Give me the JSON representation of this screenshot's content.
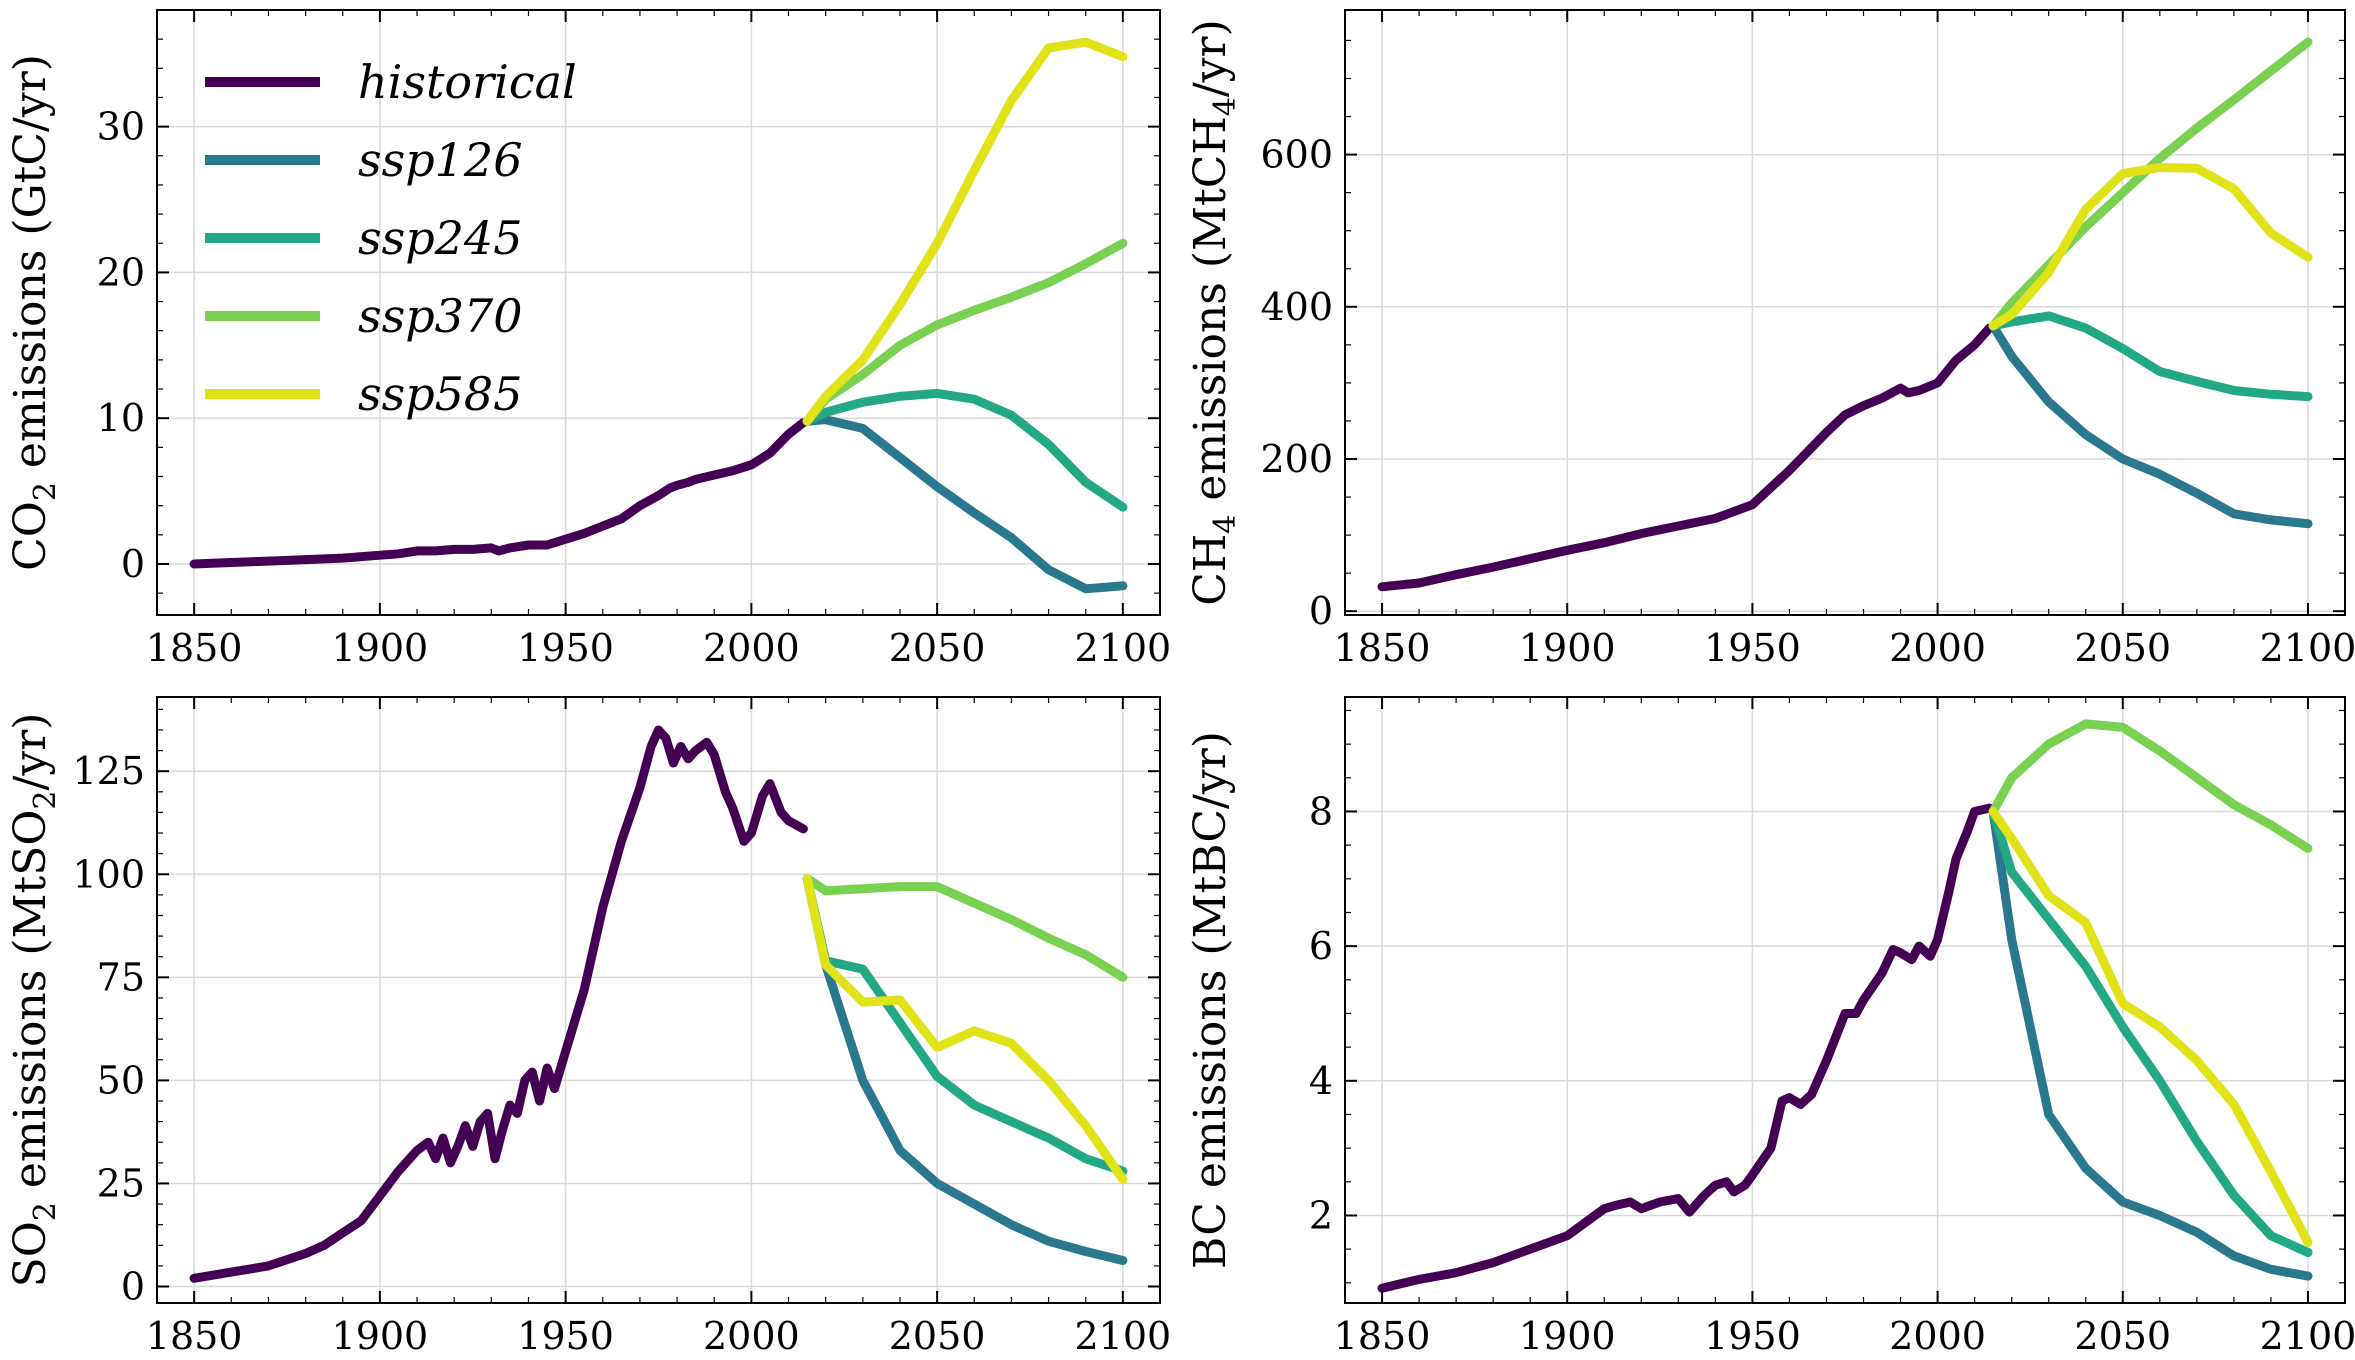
{
  "colors": {
    "historical": "#440154",
    "ssp126": "#2a788e",
    "ssp245": "#22a884",
    "ssp370": "#7ad151",
    "ssp585": "#dfe318"
  },
  "legend": {
    "placement": "top-left",
    "entries": [
      "historical",
      "ssp126",
      "ssp245",
      "ssp370",
      "ssp585"
    ]
  },
  "chart_data": [
    {
      "type": "line",
      "ylabel": "CO2 emissions (GtC/yr)",
      "ylabel_parts": {
        "pre": "CO",
        "sub": "2",
        "post": " emissions (GtC/yr)"
      },
      "xlim": [
        1840,
        2110
      ],
      "ylim": [
        -3.5,
        38
      ],
      "xticks": [
        1850,
        1900,
        1950,
        2000,
        2050,
        2100
      ],
      "xtick_labels": [
        "1850",
        "1900",
        "1950",
        "2000",
        "2050",
        "2100"
      ],
      "yticks": [
        0,
        10,
        20,
        30
      ],
      "ytick_labels": [
        "0",
        "10",
        "20",
        "30"
      ],
      "yminor": 2,
      "grid": true,
      "show_legend": true,
      "series": [
        {
          "name": "historical",
          "x": [
            1850,
            1860,
            1870,
            1880,
            1890,
            1900,
            1905,
            1910,
            1915,
            1920,
            1925,
            1930,
            1932,
            1935,
            1940,
            1945,
            1950,
            1955,
            1960,
            1965,
            1970,
            1975,
            1978,
            1980,
            1983,
            1985,
            1990,
            1995,
            2000,
            2005,
            2010,
            2014
          ],
          "y": [
            0,
            0.1,
            0.2,
            0.3,
            0.4,
            0.6,
            0.7,
            0.9,
            0.9,
            1.0,
            1.0,
            1.1,
            0.9,
            1.1,
            1.3,
            1.3,
            1.7,
            2.1,
            2.6,
            3.1,
            4.0,
            4.7,
            5.2,
            5.4,
            5.6,
            5.8,
            6.1,
            6.4,
            6.8,
            7.6,
            8.9,
            9.7
          ]
        },
        {
          "name": "ssp126",
          "x": [
            2015,
            2020,
            2030,
            2040,
            2050,
            2060,
            2070,
            2080,
            2090,
            2100
          ],
          "y": [
            9.8,
            9.9,
            9.3,
            7.3,
            5.3,
            3.5,
            1.8,
            -0.4,
            -1.7,
            -1.5
          ]
        },
        {
          "name": "ssp245",
          "x": [
            2015,
            2020,
            2030,
            2040,
            2050,
            2060,
            2070,
            2080,
            2090,
            2100
          ],
          "y": [
            9.8,
            10.4,
            11.1,
            11.5,
            11.7,
            11.3,
            10.2,
            8.2,
            5.6,
            3.9
          ]
        },
        {
          "name": "ssp370",
          "x": [
            2015,
            2020,
            2030,
            2040,
            2050,
            2060,
            2070,
            2080,
            2090,
            2100
          ],
          "y": [
            9.8,
            11.3,
            13.0,
            15.0,
            16.4,
            17.4,
            18.3,
            19.3,
            20.6,
            22.0
          ]
        },
        {
          "name": "ssp585",
          "x": [
            2015,
            2020,
            2030,
            2040,
            2050,
            2060,
            2070,
            2080,
            2090,
            2100
          ],
          "y": [
            9.8,
            11.5,
            14.0,
            17.8,
            22.0,
            27.0,
            31.8,
            35.4,
            35.8,
            34.8
          ]
        }
      ]
    },
    {
      "type": "line",
      "ylabel": "CH4 emissions (MtCH4/yr)",
      "ylabel_parts": {
        "pre": "CH",
        "sub": "4",
        "post": " emissions (MtCH",
        "sub2": "4",
        "post2": "/yr)"
      },
      "xlim": [
        1840,
        2110
      ],
      "ylim": [
        -5,
        790
      ],
      "xticks": [
        1850,
        1900,
        1950,
        2000,
        2050,
        2100
      ],
      "xtick_labels": [
        "1850",
        "1900",
        "1950",
        "2000",
        "2050",
        "2100"
      ],
      "yticks": [
        0,
        200,
        400,
        600
      ],
      "ytick_labels": [
        "0",
        "200",
        "400",
        "600"
      ],
      "yminor": 50,
      "grid": true,
      "show_legend": false,
      "series": [
        {
          "name": "historical",
          "x": [
            1850,
            1860,
            1870,
            1880,
            1890,
            1900,
            1910,
            1920,
            1930,
            1940,
            1950,
            1960,
            1970,
            1975,
            1980,
            1985,
            1990,
            1992,
            1995,
            2000,
            2005,
            2010,
            2014
          ],
          "y": [
            32,
            37,
            48,
            58,
            69,
            80,
            90,
            102,
            112,
            122,
            140,
            185,
            235,
            258,
            270,
            280,
            293,
            287,
            290,
            300,
            330,
            350,
            372
          ]
        },
        {
          "name": "ssp126",
          "x": [
            2015,
            2020,
            2030,
            2040,
            2050,
            2060,
            2070,
            2080,
            2090,
            2100
          ],
          "y": [
            375,
            335,
            275,
            232,
            200,
            180,
            155,
            128,
            120,
            115
          ]
        },
        {
          "name": "ssp245",
          "x": [
            2015,
            2020,
            2030,
            2040,
            2050,
            2060,
            2070,
            2080,
            2090,
            2100
          ],
          "y": [
            375,
            380,
            388,
            372,
            345,
            315,
            302,
            290,
            285,
            282
          ]
        },
        {
          "name": "ssp370",
          "x": [
            2015,
            2020,
            2030,
            2040,
            2050,
            2060,
            2070,
            2080,
            2090,
            2100
          ],
          "y": [
            375,
            405,
            455,
            505,
            550,
            595,
            635,
            672,
            710,
            748
          ]
        },
        {
          "name": "ssp585",
          "x": [
            2015,
            2020,
            2030,
            2040,
            2050,
            2060,
            2070,
            2080,
            2090,
            2100
          ],
          "y": [
            375,
            390,
            445,
            528,
            575,
            583,
            582,
            555,
            497,
            465
          ]
        }
      ]
    },
    {
      "type": "line",
      "ylabel": "SO2 emissions (MtSO2/yr)",
      "ylabel_parts": {
        "pre": "SO",
        "sub": "2",
        "post": " emissions (MtSO",
        "sub2": "2",
        "post2": "/yr)"
      },
      "xlim": [
        1840,
        2110
      ],
      "ylim": [
        -4,
        143
      ],
      "xticks": [
        1850,
        1900,
        1950,
        2000,
        2050,
        2100
      ],
      "xtick_labels": [
        "1850",
        "1900",
        "1950",
        "2000",
        "2050",
        "2100"
      ],
      "yticks": [
        0,
        25,
        50,
        75,
        100,
        125
      ],
      "ytick_labels": [
        "0",
        "25",
        "50",
        "75",
        "100",
        "125"
      ],
      "yminor": 5,
      "grid": true,
      "show_legend": false,
      "series": [
        {
          "name": "historical",
          "x": [
            1850,
            1860,
            1870,
            1880,
            1885,
            1890,
            1895,
            1900,
            1905,
            1910,
            1913,
            1915,
            1917,
            1919,
            1921,
            1923,
            1925,
            1927,
            1929,
            1931,
            1933,
            1935,
            1937,
            1939,
            1941,
            1943,
            1945,
            1947,
            1950,
            1955,
            1960,
            1965,
            1970,
            1973,
            1975,
            1977,
            1979,
            1981,
            1983,
            1985,
            1988,
            1990,
            1993,
            1995,
            1998,
            2000,
            2003,
            2005,
            2008,
            2010,
            2014
          ],
          "y": [
            2,
            3.5,
            5,
            8,
            10,
            13,
            16,
            22,
            28,
            33,
            35,
            31,
            36,
            30,
            34,
            39,
            34,
            40,
            42,
            31,
            38,
            44,
            42,
            50,
            52,
            45,
            53,
            48,
            57,
            72,
            92,
            108,
            121,
            131,
            135,
            133,
            127,
            131,
            128,
            130,
            132,
            129,
            120,
            116,
            108,
            110,
            119,
            122,
            115,
            113,
            111
          ]
        },
        {
          "name": "ssp126",
          "x": [
            2015,
            2020,
            2030,
            2040,
            2050,
            2060,
            2070,
            2080,
            2090,
            2100
          ],
          "y": [
            99,
            78,
            50,
            33,
            25,
            20,
            15,
            11,
            8.5,
            6.3
          ]
        },
        {
          "name": "ssp245",
          "x": [
            2015,
            2020,
            2030,
            2040,
            2050,
            2060,
            2070,
            2080,
            2090,
            2100
          ],
          "y": [
            99,
            79,
            77,
            64,
            51,
            44,
            40,
            36,
            31,
            28
          ]
        },
        {
          "name": "ssp370",
          "x": [
            2015,
            2020,
            2030,
            2040,
            2050,
            2060,
            2070,
            2080,
            2090,
            2100
          ],
          "y": [
            99,
            96,
            96.5,
            97,
            97,
            93,
            89,
            84.5,
            80.5,
            75
          ]
        },
        {
          "name": "ssp585",
          "x": [
            2015,
            2020,
            2030,
            2040,
            2050,
            2060,
            2070,
            2080,
            2090,
            2100
          ],
          "y": [
            99,
            78,
            69,
            69.5,
            58,
            62,
            59,
            50,
            39,
            26
          ]
        }
      ]
    },
    {
      "type": "line",
      "ylabel": "BC emissions (MtBC/yr)",
      "ylabel_parts": {
        "pre": "BC emissions (MtBC/yr)",
        "sub": "",
        "post": ""
      },
      "xlim": [
        1840,
        2110
      ],
      "ylim": [
        0.7,
        9.7
      ],
      "xticks": [
        1850,
        1900,
        1950,
        2000,
        2050,
        2100
      ],
      "xtick_labels": [
        "1850",
        "1900",
        "1950",
        "2000",
        "2050",
        "2100"
      ],
      "yticks": [
        2,
        4,
        6,
        8
      ],
      "ytick_labels": [
        "2",
        "4",
        "6",
        "8"
      ],
      "yminor": 0.5,
      "grid": true,
      "show_legend": false,
      "series": [
        {
          "name": "historical",
          "x": [
            1850,
            1860,
            1870,
            1880,
            1890,
            1900,
            1905,
            1910,
            1913,
            1917,
            1920,
            1925,
            1930,
            1933,
            1937,
            1940,
            1943,
            1945,
            1948,
            1950,
            1955,
            1958,
            1960,
            1963,
            1966,
            1970,
            1975,
            1978,
            1980,
            1985,
            1988,
            1990,
            1993,
            1995,
            1998,
            2000,
            2003,
            2005,
            2008,
            2010,
            2014
          ],
          "y": [
            0.92,
            1.05,
            1.15,
            1.3,
            1.5,
            1.7,
            1.9,
            2.1,
            2.15,
            2.2,
            2.1,
            2.2,
            2.25,
            2.05,
            2.3,
            2.45,
            2.5,
            2.35,
            2.45,
            2.6,
            3.0,
            3.7,
            3.75,
            3.65,
            3.8,
            4.3,
            5.0,
            5.0,
            5.2,
            5.6,
            5.95,
            5.9,
            5.8,
            6.0,
            5.85,
            6.1,
            6.8,
            7.3,
            7.7,
            8.0,
            8.05
          ]
        },
        {
          "name": "ssp126",
          "x": [
            2015,
            2020,
            2030,
            2040,
            2050,
            2060,
            2070,
            2080,
            2090,
            2100
          ],
          "y": [
            8.0,
            6.1,
            3.5,
            2.7,
            2.2,
            2.0,
            1.75,
            1.4,
            1.2,
            1.1
          ]
        },
        {
          "name": "ssp245",
          "x": [
            2015,
            2020,
            2030,
            2040,
            2050,
            2060,
            2070,
            2080,
            2090,
            2100
          ],
          "y": [
            8.0,
            7.1,
            6.4,
            5.7,
            4.8,
            4.0,
            3.1,
            2.3,
            1.7,
            1.45
          ]
        },
        {
          "name": "ssp370",
          "x": [
            2015,
            2020,
            2030,
            2040,
            2050,
            2060,
            2070,
            2080,
            2090,
            2100
          ],
          "y": [
            8.0,
            8.5,
            9.0,
            9.3,
            9.25,
            8.9,
            8.5,
            8.1,
            7.8,
            7.45
          ]
        },
        {
          "name": "ssp585",
          "x": [
            2015,
            2020,
            2030,
            2040,
            2050,
            2060,
            2070,
            2080,
            2090,
            2100
          ],
          "y": [
            8.0,
            7.6,
            6.75,
            6.35,
            5.15,
            4.8,
            4.3,
            3.65,
            2.65,
            1.6
          ]
        }
      ]
    }
  ]
}
